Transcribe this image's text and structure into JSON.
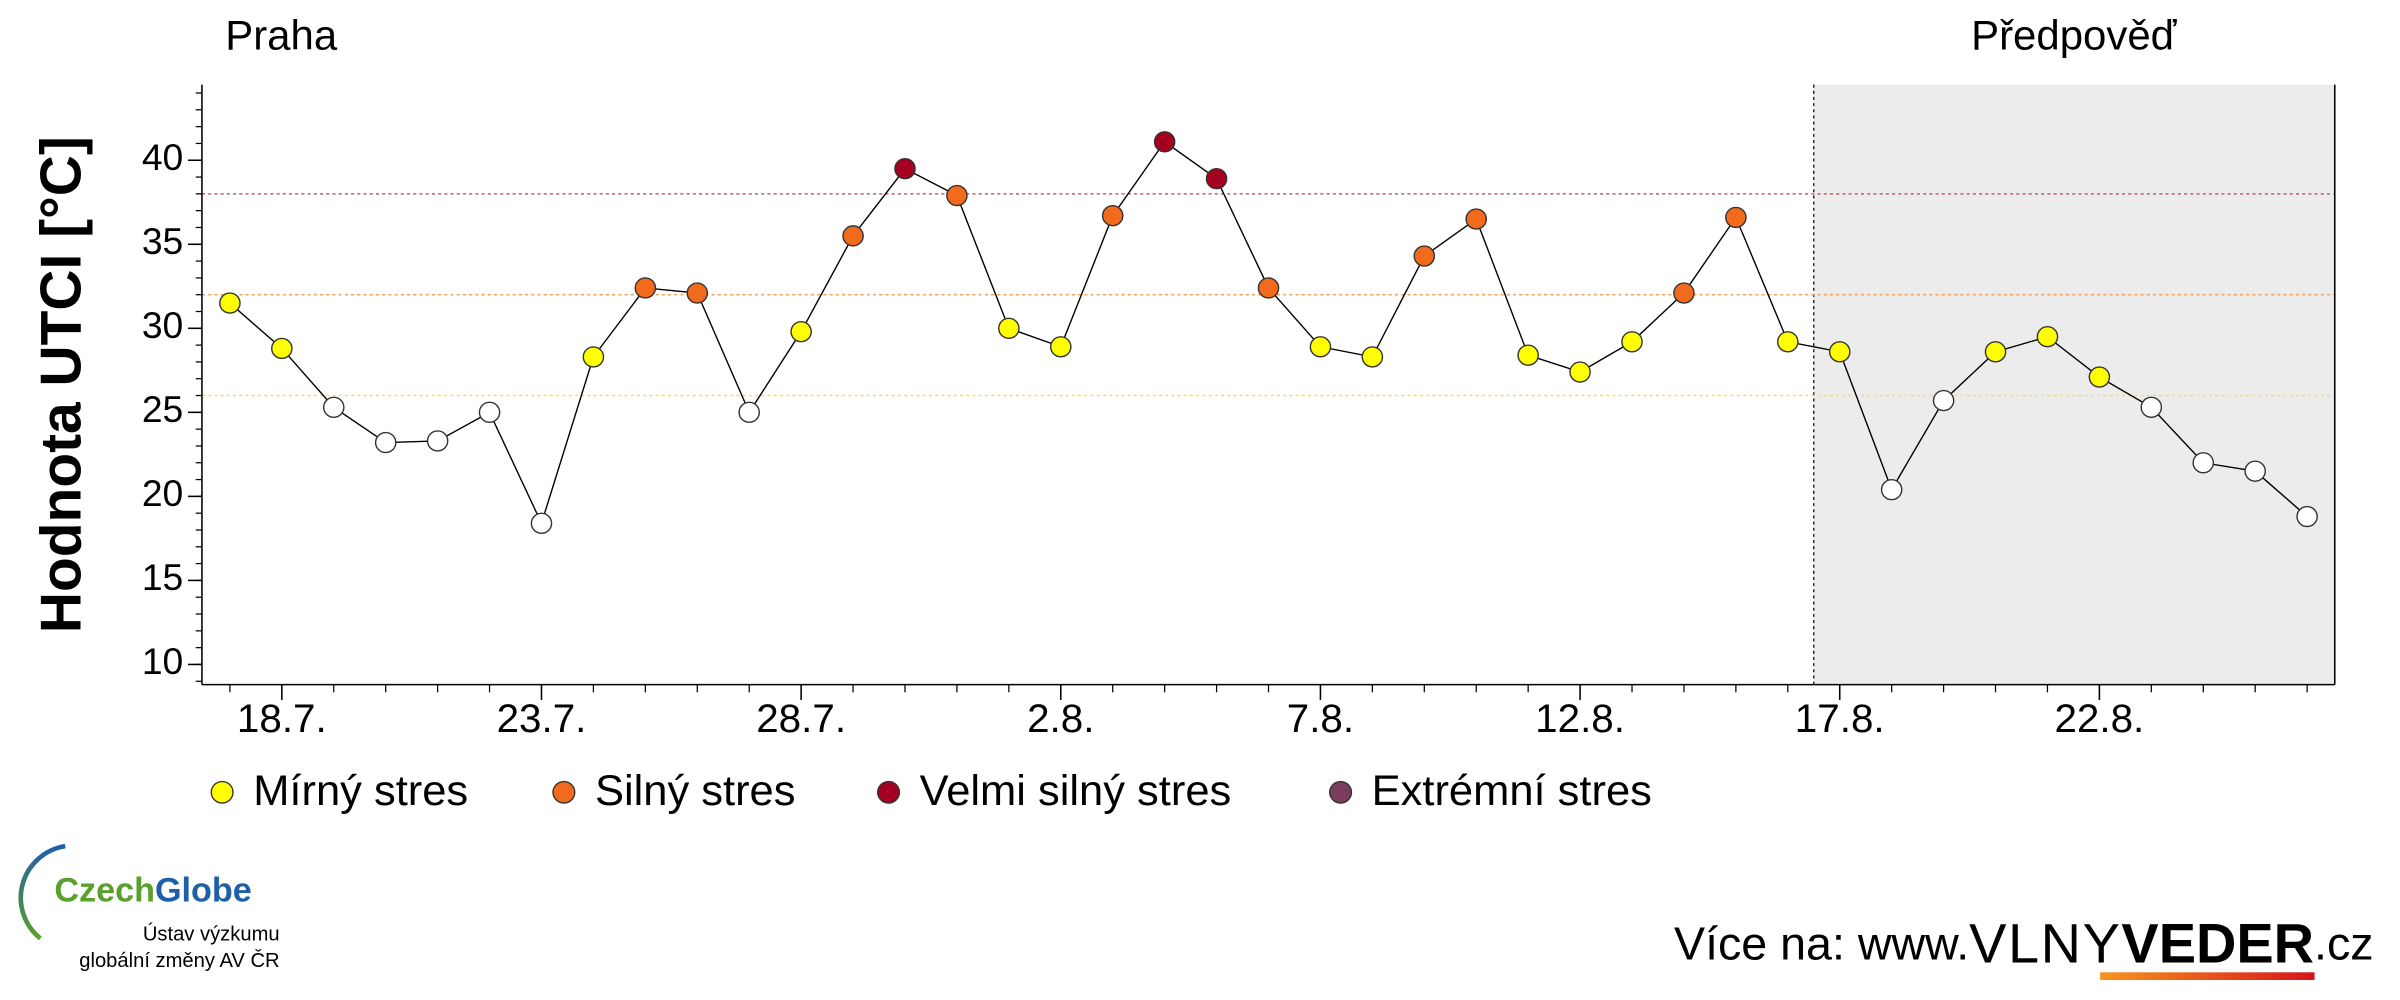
{
  "chart_data": {
    "type": "line",
    "title": "Praha",
    "forecast_label": "Předpověď",
    "forecast_from_index": 30.5,
    "ylabel": "Hodnota UTCI [°C]",
    "categories": [
      null,
      "18.7.",
      null,
      null,
      null,
      null,
      "23.7.",
      null,
      null,
      null,
      null,
      "28.7.",
      null,
      null,
      null,
      null,
      "2.8.",
      null,
      null,
      null,
      null,
      "7.8.",
      null,
      null,
      null,
      null,
      "12.8.",
      null,
      null,
      null,
      null,
      "17.8.",
      null,
      null,
      null,
      null,
      "22.8.",
      null,
      null,
      null,
      null
    ],
    "values": [
      31.5,
      28.8,
      25.3,
      23.2,
      23.3,
      25.0,
      18.4,
      28.3,
      32.4,
      32.1,
      25.0,
      29.8,
      35.5,
      39.5,
      37.9,
      30.0,
      28.9,
      36.7,
      41.1,
      38.9,
      32.4,
      28.9,
      28.3,
      34.3,
      36.5,
      28.4,
      27.4,
      29.2,
      32.1,
      36.6,
      29.2,
      28.6,
      20.4,
      25.7,
      28.6,
      29.5,
      27.1,
      25.3,
      22.0,
      21.5,
      18.8
    ],
    "line_color": "#000000",
    "below_color": "#ffffff",
    "levels": [
      {
        "name": "Mírný stres",
        "from": 26,
        "color": "#ffff00",
        "line_color": "#ffd966"
      },
      {
        "name": "Silný stres",
        "from": 32,
        "color": "#f26b1d",
        "line_color": "#f4a460"
      },
      {
        "name": "Velmi silný stres",
        "from": 38,
        "color": "#a50021",
        "line_color": "#c06070"
      },
      {
        "name": "Extrémní stres",
        "color": "#7b3d5c"
      }
    ],
    "ylim": [
      8.8,
      44.5
    ],
    "yticks": [
      10,
      15,
      20,
      25,
      30,
      35,
      40
    ]
  },
  "branding": {
    "logo_czech": "Czech",
    "logo_globe": "Globe",
    "logo_line1": "Ústav výzkumu",
    "logo_line2": "globální změny AV ČR",
    "footer_prefix": "Více na: www.",
    "footer_vlny": "VLNY",
    "footer_veder": "VEDER",
    "footer_suffix": ".cz"
  }
}
